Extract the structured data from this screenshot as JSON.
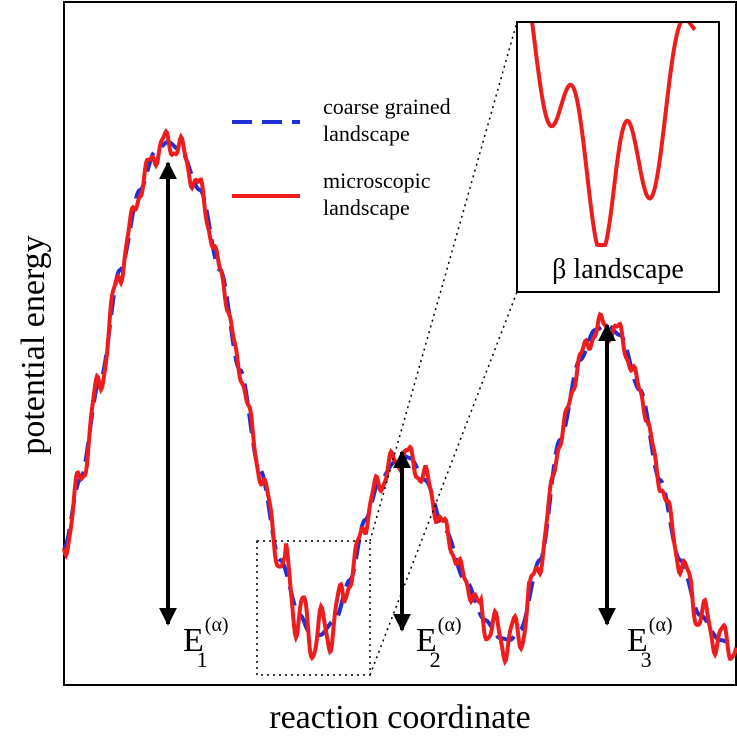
{
  "axes": {
    "xlabel": "reaction coordinate",
    "ylabel": "potential energy"
  },
  "legend": {
    "entries": [
      {
        "line1": "coarse grained",
        "line2": "landscape",
        "style": "dashed",
        "color": "#1f2fd6"
      },
      {
        "line1": "microscopic",
        "line2": "landscape",
        "style": "solid",
        "color": "#ee1c1c"
      }
    ]
  },
  "barriers": [
    {
      "base": "E",
      "sub": "1",
      "sup": "(α)"
    },
    {
      "base": "E",
      "sub": "2",
      "sup": "(α)"
    },
    {
      "base": "E",
      "sub": "3",
      "sup": "(α)"
    }
  ],
  "inset": {
    "label": "β landscape"
  },
  "colors": {
    "coarse": "#1f2fd6",
    "micro": "#ee1c1c",
    "frame": "#000000"
  }
}
